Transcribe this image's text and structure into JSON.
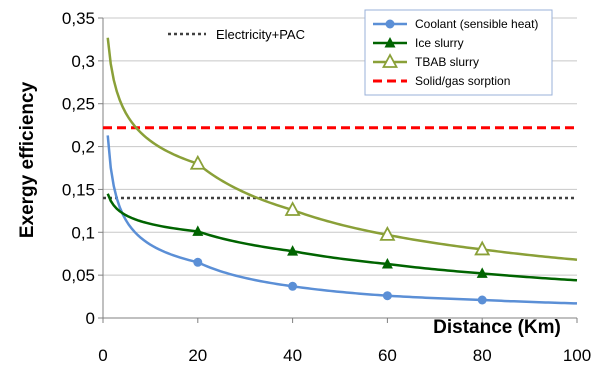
{
  "chart_data": {
    "type": "line",
    "xlabel": "Distance (Km)",
    "ylabel": "Exergy efficiency",
    "xlim": [
      0,
      100
    ],
    "ylim": [
      0,
      0.35
    ],
    "x_ticks": [
      0,
      20,
      40,
      60,
      80,
      100
    ],
    "x_tick_labels": [
      "0",
      "20",
      "40",
      "60",
      "80",
      "100"
    ],
    "y_ticks": [
      0,
      0.05,
      0.1,
      0.15,
      0.2,
      0.25,
      0.3,
      0.35
    ],
    "y_tick_labels": [
      "0",
      "0,05",
      "0,1",
      "0,15",
      "0,2",
      "0,25",
      "0,3",
      "0,35"
    ],
    "grid": "horizontal",
    "legend_position": "top-right",
    "series": [
      {
        "name": "Coolant (sensible heat)",
        "color": "#5b8fd6",
        "marker": "circle",
        "x": [
          1,
          20,
          40,
          60,
          80,
          100
        ],
        "y": [
          0.213,
          0.065,
          0.037,
          0.026,
          0.021,
          0.017
        ]
      },
      {
        "name": "Ice slurry",
        "color": "#006400",
        "marker": "filled-triangle",
        "x": [
          1,
          20,
          40,
          60,
          80,
          100
        ],
        "y": [
          0.145,
          0.101,
          0.078,
          0.063,
          0.052,
          0.044
        ]
      },
      {
        "name": "TBAB slurry",
        "color": "#8aa038",
        "marker": "open-triangle",
        "x": [
          1,
          20,
          40,
          60,
          80,
          100
        ],
        "y": [
          0.327,
          0.18,
          0.126,
          0.097,
          0.08,
          0.068
        ]
      },
      {
        "name": "Solid/gas sorption",
        "color": "#ff0000",
        "style": "dashed",
        "y_constant": 0.222
      },
      {
        "name": "Electricity+PAC",
        "color": "#404040",
        "style": "dotted",
        "y_constant": 0.14
      }
    ]
  }
}
